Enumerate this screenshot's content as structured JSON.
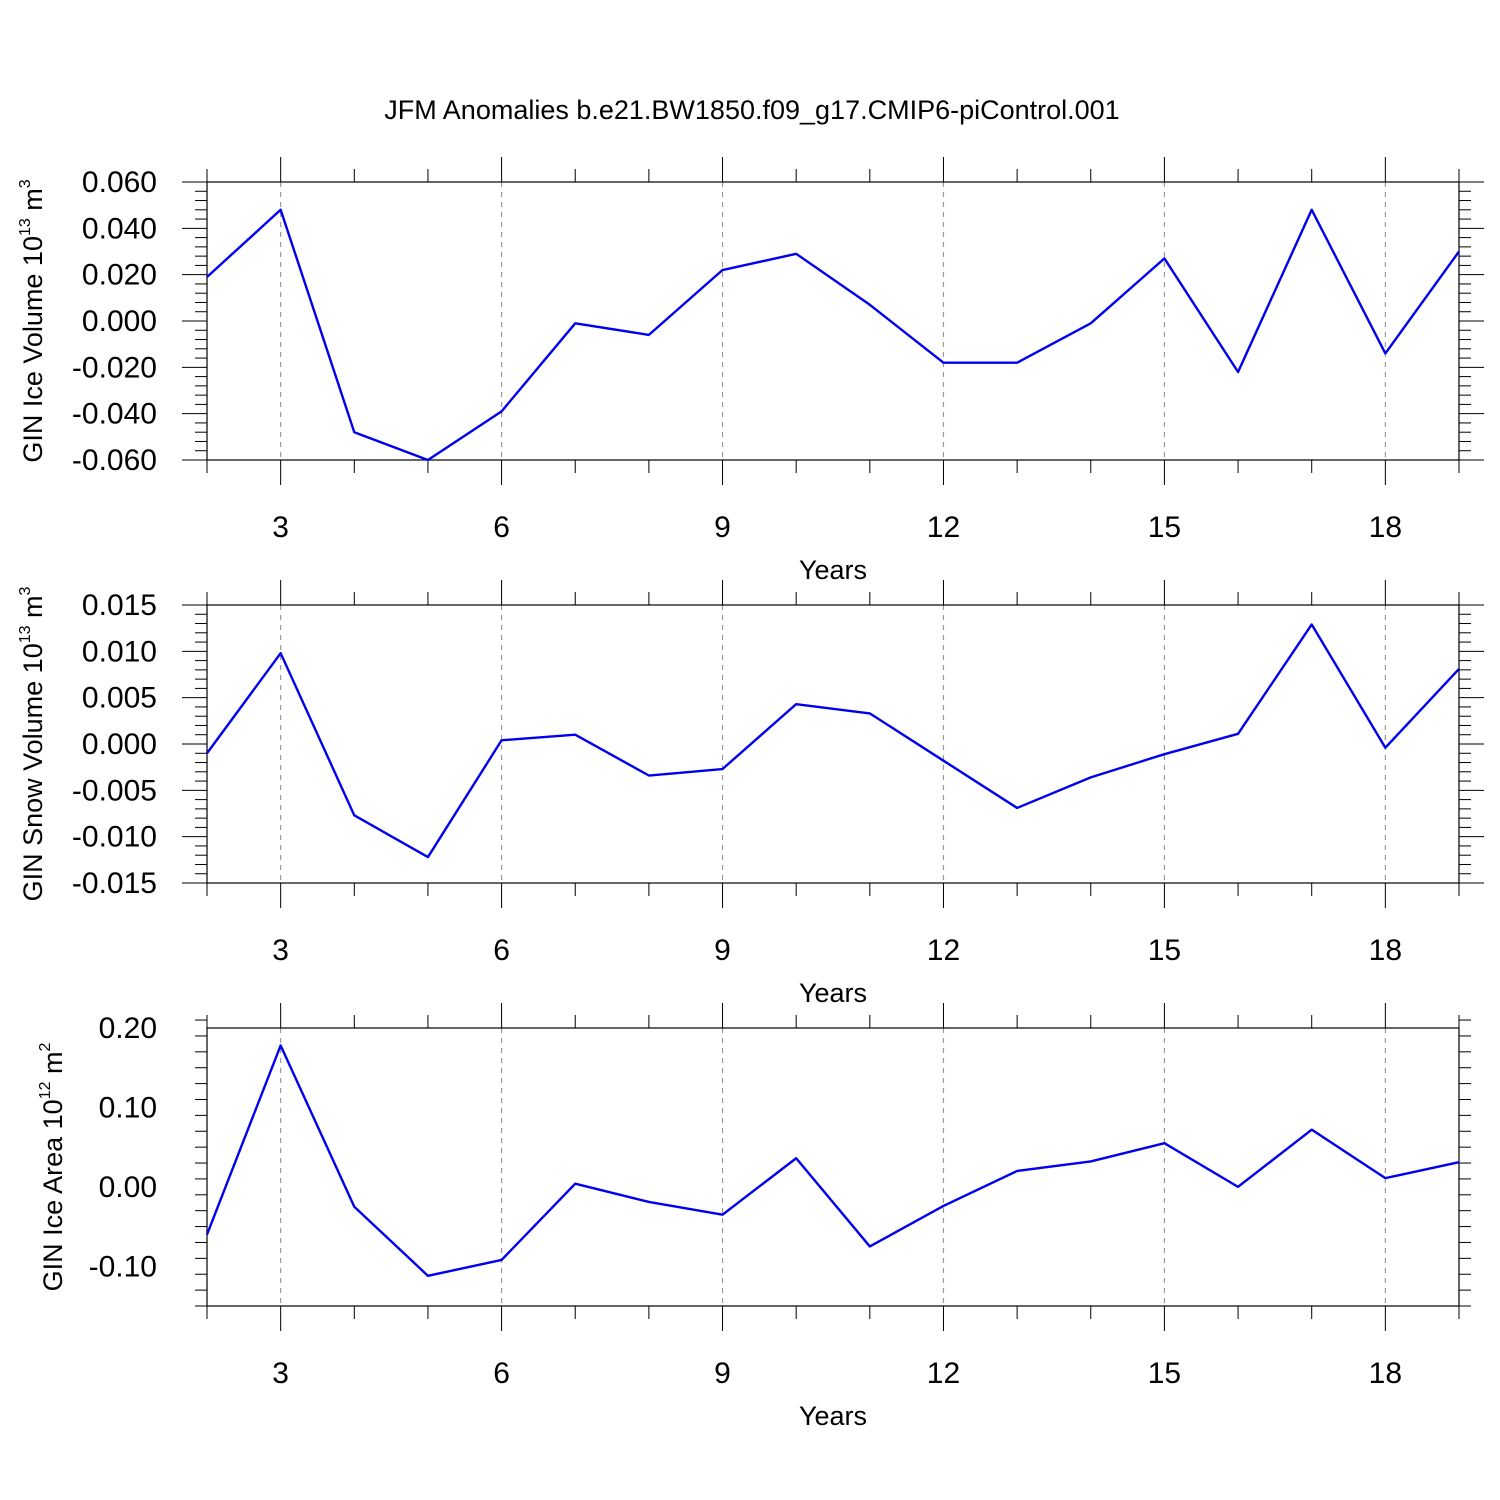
{
  "title": "JFM Anomalies b.e21.BW1850.f09_g17.CMIP6-piControl.001",
  "chart_data": [
    {
      "type": "line",
      "xlabel": "Years",
      "ylabel": {
        "text": "GIN Ice Volume 10",
        "sup": "13",
        "unit": " m",
        "unit_sup": "3"
      },
      "xlim": [
        2,
        19
      ],
      "ylim": [
        -0.06,
        0.06
      ],
      "xticks": [
        3,
        6,
        9,
        12,
        15,
        18
      ],
      "xtick_labels": [
        "3",
        "6",
        "9",
        "12",
        "15",
        "18"
      ],
      "yticks": [
        -0.06,
        -0.04,
        -0.02,
        0.0,
        0.02,
        0.04,
        0.06
      ],
      "ytick_labels": [
        "-0.060",
        "-0.040",
        "-0.020",
        "0.000",
        "0.020",
        "0.040",
        "0.060"
      ],
      "x": [
        2,
        3,
        4,
        5,
        6,
        7,
        8,
        9,
        10,
        11,
        12,
        13,
        14,
        15,
        16,
        17,
        18,
        19
      ],
      "values": [
        0.019,
        0.048,
        -0.048,
        -0.06,
        -0.039,
        -0.001,
        -0.006,
        0.022,
        0.029,
        0.007,
        -0.018,
        -0.018,
        -0.001,
        0.027,
        -0.022,
        0.048,
        -0.014,
        0.03
      ]
    },
    {
      "type": "line",
      "xlabel": "Years",
      "ylabel": {
        "text": "GIN Snow Volume 10",
        "sup": "13",
        "unit": " m",
        "unit_sup": "3"
      },
      "xlim": [
        2,
        19
      ],
      "ylim": [
        -0.015,
        0.015
      ],
      "xticks": [
        3,
        6,
        9,
        12,
        15,
        18
      ],
      "xtick_labels": [
        "3",
        "6",
        "9",
        "12",
        "15",
        "18"
      ],
      "yticks": [
        -0.015,
        -0.01,
        -0.005,
        0.0,
        0.005,
        0.01,
        0.015
      ],
      "ytick_labels": [
        "-0.015",
        "-0.010",
        "-0.005",
        "0.000",
        "0.005",
        "0.010",
        "0.015"
      ],
      "x": [
        2,
        3,
        4,
        5,
        6,
        7,
        8,
        9,
        10,
        11,
        12,
        13,
        14,
        15,
        16,
        17,
        18,
        19
      ],
      "values": [
        -0.001,
        0.0098,
        -0.0077,
        -0.0122,
        0.0004,
        0.001,
        -0.0034,
        -0.0027,
        0.0043,
        0.0033,
        -0.0018,
        -0.0069,
        -0.0036,
        -0.0011,
        0.0011,
        0.0129,
        -0.0004,
        0.0081
      ]
    },
    {
      "type": "line",
      "xlabel": "Years",
      "ylabel": {
        "text": "GIN Ice Area 10",
        "sup": "12",
        "unit": " m",
        "unit_sup": "2"
      },
      "xlim": [
        2,
        19
      ],
      "ylim": [
        -0.15,
        0.2
      ],
      "xticks": [
        3,
        6,
        9,
        12,
        15,
        18
      ],
      "xtick_labels": [
        "3",
        "6",
        "9",
        "12",
        "15",
        "18"
      ],
      "yticks": [
        -0.1,
        0.0,
        0.1,
        0.2
      ],
      "ytick_labels": [
        "-0.10",
        "0.00",
        "0.10",
        "0.20"
      ],
      "x": [
        2,
        3,
        4,
        5,
        6,
        7,
        8,
        9,
        10,
        11,
        12,
        13,
        14,
        15,
        16,
        17,
        18,
        19
      ],
      "values": [
        -0.06,
        0.178,
        -0.025,
        -0.112,
        -0.092,
        0.004,
        -0.019,
        -0.035,
        0.036,
        -0.075,
        -0.024,
        0.02,
        0.032,
        0.055,
        0.0,
        0.072,
        0.011,
        0.031
      ]
    }
  ]
}
